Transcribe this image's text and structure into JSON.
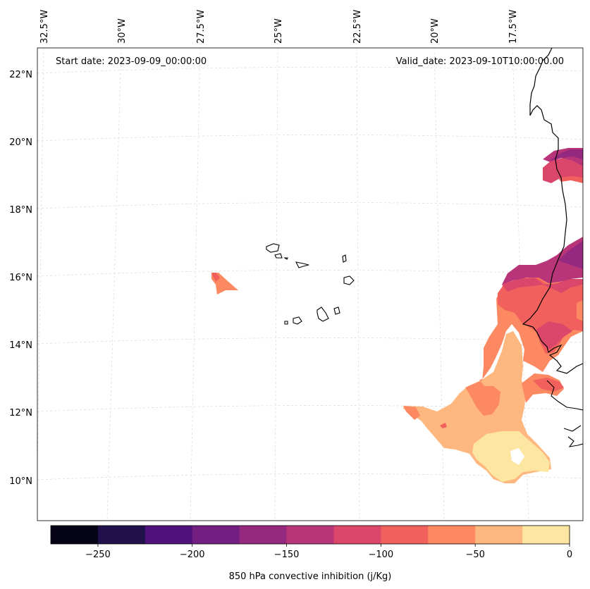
{
  "map": {
    "start_date": "Start date: 2023-09-09_00:00:00",
    "valid_date": "Valid_date: 2023-09-10T10:00:00.00",
    "lon_labels": [
      "32.5°W",
      "30°W",
      "27.5°W",
      "25°W",
      "22.5°W",
      "20°W",
      "17.5°W"
    ],
    "lat_labels": [
      "22°N",
      "20°N",
      "18°N",
      "16°N",
      "14°N",
      "12°N",
      "10°N"
    ],
    "islands": "Cape Verde",
    "coastline": "West Africa"
  },
  "colorbar": {
    "label": "850 hPa convective inhibition (j/Kg)",
    "ticks": [
      "−250",
      "−200",
      "−150",
      "−100",
      "−50",
      "0"
    ],
    "tick_values": [
      -250,
      -200,
      -150,
      -100,
      -50,
      0
    ],
    "range": [
      -275,
      0
    ],
    "levels": [
      -275,
      -250,
      -225,
      -200,
      -175,
      -150,
      -125,
      -100,
      -75,
      -50,
      -25,
      0
    ],
    "colors": [
      "#050416",
      "#20114b",
      "#4e117b",
      "#731f81",
      "#95297f",
      "#b9357a",
      "#db476a",
      "#f1605d",
      "#fc8961",
      "#feb77e",
      "#fde5a2"
    ]
  }
}
